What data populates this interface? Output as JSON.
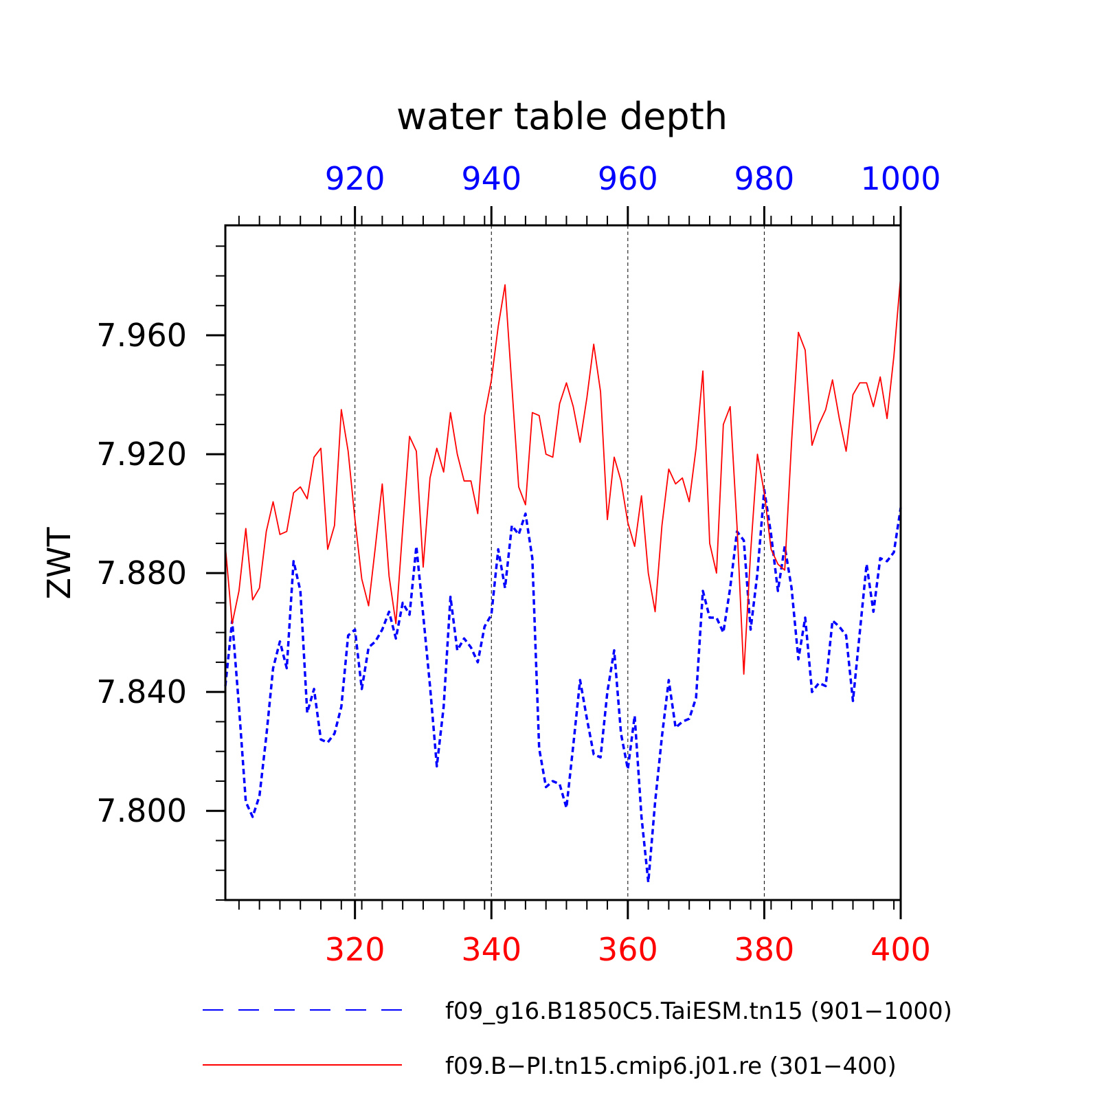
{
  "chart_data": {
    "type": "line",
    "title": "water table depth",
    "ylabel": "ZWT",
    "ylim": [
      7.77,
      7.997
    ],
    "y_ticks": [
      "7.800",
      "7.840",
      "7.880",
      "7.920",
      "7.960"
    ],
    "x_bottom": {
      "range": [
        301,
        400
      ],
      "ticks": [
        "320",
        "340",
        "360",
        "380",
        "400"
      ],
      "color": "#ff0000"
    },
    "x_top": {
      "range": [
        901,
        1000
      ],
      "ticks": [
        "920",
        "940",
        "960",
        "980",
        "1000"
      ],
      "color": "#0000ff"
    },
    "grid": "vertical dashed at major x ticks",
    "legend_position": "bottom",
    "series": [
      {
        "name": "f09_g16.B1850C5.TaiESM.tn15 (901−1000)",
        "color": "#0000ff",
        "style": "dashed",
        "axis": "top",
        "x_start": 901,
        "values": [
          7.842,
          7.864,
          7.835,
          7.803,
          7.798,
          7.805,
          7.825,
          7.848,
          7.857,
          7.848,
          7.884,
          7.874,
          7.833,
          7.841,
          7.824,
          7.823,
          7.826,
          7.835,
          7.859,
          7.861,
          7.841,
          7.855,
          7.857,
          7.861,
          7.867,
          7.858,
          7.87,
          7.866,
          7.889,
          7.866,
          7.842,
          7.815,
          7.835,
          7.872,
          7.854,
          7.858,
          7.855,
          7.85,
          7.862,
          7.866,
          7.888,
          7.875,
          7.896,
          7.893,
          7.9,
          7.885,
          7.821,
          7.808,
          7.81,
          7.809,
          7.801,
          7.822,
          7.844,
          7.831,
          7.819,
          7.818,
          7.84,
          7.854,
          7.826,
          7.814,
          7.832,
          7.798,
          7.776,
          7.803,
          7.825,
          7.844,
          7.828,
          7.83,
          7.831,
          7.838,
          7.874,
          7.865,
          7.865,
          7.86,
          7.875,
          7.894,
          7.891,
          7.861,
          7.88,
          7.908,
          7.893,
          7.874,
          7.889,
          7.875,
          7.851,
          7.865,
          7.84,
          7.843,
          7.842,
          7.864,
          7.862,
          7.859,
          7.837,
          7.86,
          7.883,
          7.867,
          7.885,
          7.884,
          7.887,
          7.902
        ]
      },
      {
        "name": "f09.B−PI.tn15.cmip6.j01.re (301−400)",
        "color": "#ff0000",
        "style": "solid",
        "axis": "bottom",
        "x_start": 301,
        "values": [
          7.889,
          7.863,
          7.874,
          7.895,
          7.871,
          7.875,
          7.894,
          7.904,
          7.893,
          7.894,
          7.907,
          7.909,
          7.905,
          7.919,
          7.922,
          7.888,
          7.896,
          7.935,
          7.921,
          7.898,
          7.878,
          7.869,
          7.889,
          7.91,
          7.879,
          7.863,
          7.895,
          7.926,
          7.921,
          7.882,
          7.912,
          7.922,
          7.914,
          7.934,
          7.92,
          7.911,
          7.911,
          7.9,
          7.933,
          7.945,
          7.963,
          7.977,
          7.943,
          7.909,
          7.903,
          7.934,
          7.933,
          7.92,
          7.919,
          7.937,
          7.944,
          7.936,
          7.924,
          7.939,
          7.957,
          7.941,
          7.898,
          7.919,
          7.911,
          7.897,
          7.889,
          7.906,
          7.88,
          7.867,
          7.896,
          7.915,
          7.91,
          7.912,
          7.904,
          7.922,
          7.948,
          7.89,
          7.88,
          7.93,
          7.936,
          7.896,
          7.846,
          7.887,
          7.92,
          7.907,
          7.888,
          7.883,
          7.881,
          7.924,
          7.961,
          7.955,
          7.923,
          7.93,
          7.935,
          7.945,
          7.932,
          7.921,
          7.94,
          7.944,
          7.944,
          7.936,
          7.946,
          7.932,
          7.953,
          7.98
        ]
      }
    ]
  }
}
